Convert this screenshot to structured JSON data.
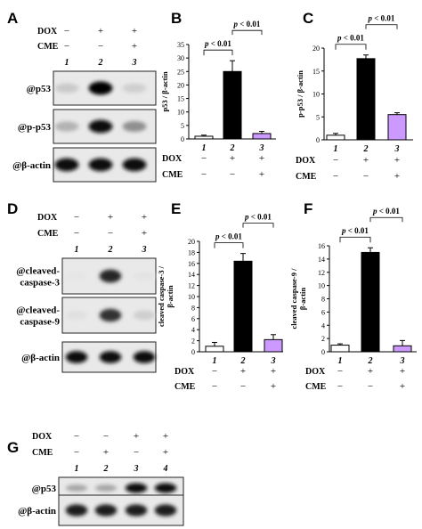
{
  "figure": {
    "colors": {
      "white_bar": "#ffffff",
      "black_bar": "#000000",
      "purple_bar": "#cc99ff",
      "blot_bg": "#e9e9e9"
    },
    "labels": {
      "dox": "DOX",
      "cme": "CME",
      "plus": "+",
      "minus": "−"
    },
    "panels": [
      {
        "id": "A",
        "letter": "A",
        "lanes": [
          "1",
          "2",
          "3"
        ],
        "dox": [
          "−",
          "+",
          "+"
        ],
        "cme": [
          "−",
          "−",
          "+"
        ],
        "blots": [
          {
            "label": "@p53",
            "intensities": [
              0.15,
              1.0,
              0.12
            ]
          },
          {
            "label": "@p-p53",
            "intensities": [
              0.25,
              0.95,
              0.4
            ]
          },
          {
            "label": "@β-actin",
            "intensities": [
              0.95,
              0.95,
              0.95
            ]
          }
        ]
      },
      {
        "id": "D",
        "letter": "D",
        "lanes": [
          "1",
          "2",
          "3"
        ],
        "dox": [
          "−",
          "+",
          "+"
        ],
        "cme": [
          "−",
          "−",
          "+"
        ],
        "blots": [
          {
            "label": "@cleaved-caspase-3",
            "label_lines": [
              "@cleaved-",
              "caspase-3"
            ],
            "intensities": [
              0.02,
              0.85,
              0.03
            ]
          },
          {
            "label": "@cleaved-caspase-9",
            "label_lines": [
              "@cleaved-",
              "caspase-9"
            ],
            "intensities": [
              0.05,
              0.8,
              0.12
            ]
          },
          {
            "label": "@β-actin",
            "label_lines": [
              "@β-actin"
            ],
            "intensities": [
              0.95,
              0.95,
              0.95
            ]
          }
        ]
      },
      {
        "id": "G",
        "letter": "G",
        "lanes": [
          "1",
          "2",
          "3",
          "4"
        ],
        "dox": [
          "−",
          "−",
          "+",
          "+"
        ],
        "cme": [
          "−",
          "+",
          "−",
          "+"
        ],
        "blots": [
          {
            "label": "@p53",
            "intensities": [
              0.3,
              0.3,
              0.95,
              0.95
            ]
          },
          {
            "label": "@β-actin",
            "intensities": [
              0.9,
              0.9,
              0.9,
              0.9
            ]
          }
        ]
      }
    ]
  },
  "chart_data": [
    {
      "panel": "B",
      "type": "bar",
      "categories": [
        "1",
        "2",
        "3"
      ],
      "values": [
        1,
        25,
        2
      ],
      "errors": [
        0.4,
        4,
        0.8
      ],
      "ylabel": "p53 / β-actin",
      "ylim": [
        0,
        35
      ],
      "yticks": [
        0,
        5,
        10,
        15,
        20,
        25,
        30,
        35
      ],
      "dox": [
        "−",
        "+",
        "+"
      ],
      "cme": [
        "−",
        "−",
        "+"
      ],
      "comparisons": [
        {
          "from": 0,
          "to": 1,
          "label": "p < 0.01"
        },
        {
          "from": 1,
          "to": 2,
          "label": "p < 0.01"
        }
      ]
    },
    {
      "panel": "C",
      "type": "bar",
      "categories": [
        "1",
        "2",
        "3"
      ],
      "values": [
        1,
        17.7,
        5.5
      ],
      "errors": [
        0.4,
        0.8,
        0.4
      ],
      "ylabel": "p-p53 / β-actin",
      "ylim": [
        0,
        20
      ],
      "yticks": [
        0,
        5,
        10,
        15,
        20
      ],
      "dox": [
        "−",
        "+",
        "+"
      ],
      "cme": [
        "−",
        "−",
        "+"
      ],
      "comparisons": [
        {
          "from": 0,
          "to": 1,
          "label": "p < 0.01"
        },
        {
          "from": 1,
          "to": 2,
          "label": "p < 0.01"
        }
      ]
    },
    {
      "panel": "E",
      "type": "bar",
      "categories": [
        "1",
        "2",
        "3"
      ],
      "values": [
        1,
        16.4,
        2.2
      ],
      "errors": [
        0.7,
        1.4,
        0.9
      ],
      "ylabel": "cleaved caspase-3 / β-actin",
      "ylabel_lines": [
        "cleaved caspase-3 /",
        "β-actin"
      ],
      "ylim": [
        0,
        20
      ],
      "yticks": [
        0,
        2,
        4,
        6,
        8,
        10,
        12,
        14,
        16,
        18,
        20
      ],
      "dox": [
        "−",
        "+",
        "+"
      ],
      "cme": [
        "−",
        "−",
        "+"
      ],
      "comparisons": [
        {
          "from": 0,
          "to": 1,
          "label": "p < 0.01"
        },
        {
          "from": 1,
          "to": 2,
          "label": "p < 0.01"
        }
      ]
    },
    {
      "panel": "F",
      "type": "bar",
      "categories": [
        "1",
        "2",
        "3"
      ],
      "values": [
        1,
        15,
        0.9
      ],
      "errors": [
        0.2,
        0.7,
        0.8
      ],
      "ylabel": "cleaved caspase-9 / β-actin",
      "ylabel_lines": [
        "cleaved caspase-9 /",
        "β-actin"
      ],
      "ylim": [
        0,
        16
      ],
      "yticks": [
        0,
        2,
        4,
        6,
        8,
        10,
        12,
        14,
        16
      ],
      "dox": [
        "−",
        "+",
        "+"
      ],
      "cme": [
        "−",
        "−",
        "+"
      ],
      "comparisons": [
        {
          "from": 0,
          "to": 1,
          "label": "p < 0.01"
        },
        {
          "from": 1,
          "to": 2,
          "label": "p < 0.01"
        }
      ]
    }
  ]
}
